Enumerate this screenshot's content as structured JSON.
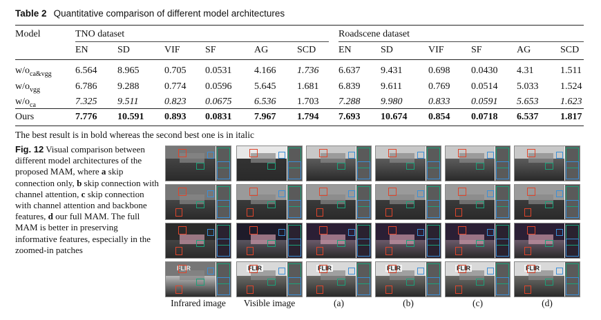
{
  "table": {
    "label": "Table 2",
    "title": "Quantitative comparison of different model architectures",
    "model_header": "Model",
    "groups": [
      "TNO dataset",
      "Roadscene dataset"
    ],
    "metrics": [
      "EN",
      "SD",
      "VIF",
      "SF",
      "AG",
      "SCD"
    ],
    "rows": [
      {
        "model": "w/o",
        "sub": "ca&vgg",
        "values": [
          "6.564",
          "8.965",
          "0.705",
          "0.0531",
          "4.166",
          "1.736",
          "6.637",
          "9.431",
          "0.698",
          "0.0430",
          "4.31",
          "1.511"
        ],
        "style": [
          "n",
          "n",
          "n",
          "n",
          "n",
          "i",
          "n",
          "n",
          "n",
          "n",
          "n",
          "n"
        ]
      },
      {
        "model": "w/o",
        "sub": "vgg",
        "values": [
          "6.786",
          "9.288",
          "0.774",
          "0.0596",
          "5.645",
          "1.681",
          "6.839",
          "9.611",
          "0.769",
          "0.0514",
          "5.033",
          "1.524"
        ],
        "style": [
          "n",
          "n",
          "n",
          "n",
          "n",
          "n",
          "n",
          "n",
          "n",
          "n",
          "n",
          "n"
        ]
      },
      {
        "model": "w/o",
        "sub": "ca",
        "values": [
          "7.325",
          "9.511",
          "0.823",
          "0.0675",
          "6.536",
          "1.703",
          "7.288",
          "9.980",
          "0.833",
          "0.0591",
          "5.653",
          "1.623"
        ],
        "style": [
          "i",
          "i",
          "i",
          "i",
          "i",
          "n",
          "i",
          "i",
          "i",
          "i",
          "i",
          "i"
        ]
      },
      {
        "model": "Ours",
        "sub": "",
        "values": [
          "7.776",
          "10.591",
          "0.893",
          "0.0831",
          "7.967",
          "1.794",
          "7.693",
          "10.674",
          "0.854",
          "0.0718",
          "6.537",
          "1.817"
        ],
        "style": [
          "b",
          "b",
          "b",
          "b",
          "b",
          "b",
          "b",
          "b",
          "b",
          "b",
          "b",
          "b"
        ]
      }
    ],
    "footnote": "The best result is in bold whereas the second best one is in italic"
  },
  "figure": {
    "label": "Fig. 12",
    "caption_parts": [
      {
        "t": "Visual comparison between different model architectures of the proposed MAM, where ",
        "b": false
      },
      {
        "t": "a",
        "b": true
      },
      {
        "t": " skip connection only, ",
        "b": false
      },
      {
        "t": "b",
        "b": true
      },
      {
        "t": " skip connection with channel attention, ",
        "b": false
      },
      {
        "t": "c",
        "b": true
      },
      {
        "t": " skip connection with channel attention and backbone features, ",
        "b": false
      },
      {
        "t": "d",
        "b": true
      },
      {
        "t": " our full MAM. The full MAM is better in preserving informative features, especially in the zoomed-in patches",
        "b": false
      }
    ],
    "column_labels": [
      "Infrared image",
      "Visible image",
      "(a)",
      "(b)",
      "(c)",
      "(d)"
    ],
    "tile_text": "FLIR",
    "colors": {
      "red_box": "#e0452b",
      "green_box": "#1aa37a",
      "blue_box": "#3a8fd8"
    }
  }
}
